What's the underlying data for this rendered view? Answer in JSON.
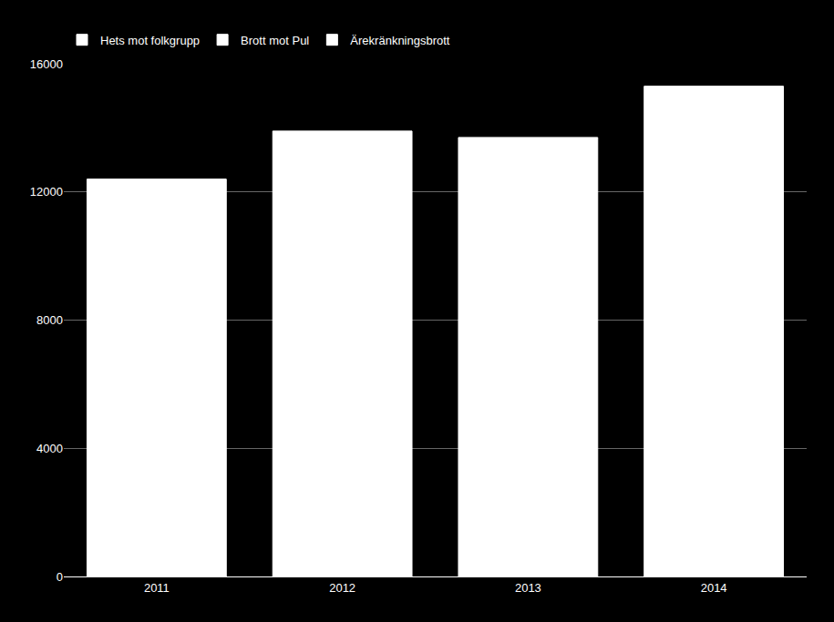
{
  "chart_data": {
    "type": "bar",
    "categories": [
      "2011",
      "2012",
      "2013",
      "2014"
    ],
    "series": [
      {
        "name": "Hets mot folkgrupp",
        "color": "#ffffff",
        "values": [
          12400,
          13900,
          13700,
          15300
        ]
      },
      {
        "name": "Brott mot Pul",
        "color": "#ffffff",
        "values": [
          null,
          null,
          null,
          null
        ]
      },
      {
        "name": "Ärekränkningsbrott",
        "color": "#ffffff",
        "values": [
          null,
          null,
          null,
          null
        ]
      }
    ],
    "ylim": [
      0,
      16000
    ],
    "yticks": [
      0,
      4000,
      8000,
      12000,
      16000
    ],
    "grid": true,
    "legend": "upper left"
  }
}
